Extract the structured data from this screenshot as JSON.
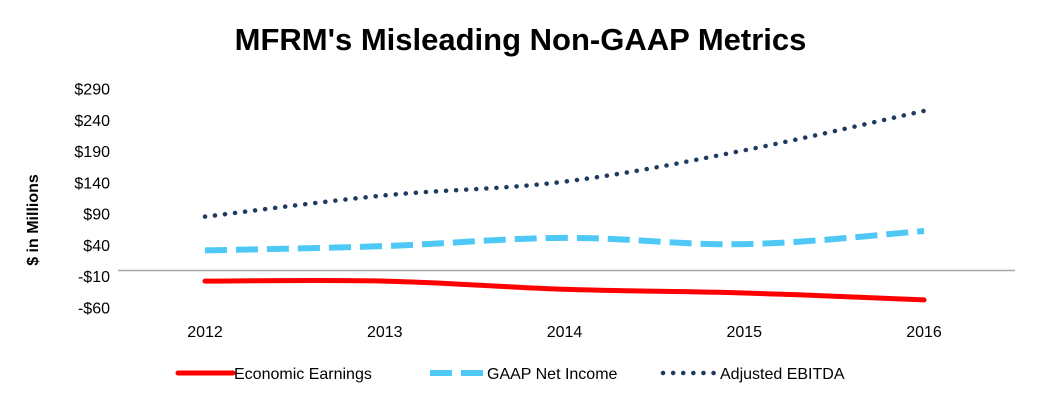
{
  "chart_data": {
    "type": "line",
    "title": "MFRM's Misleading Non-GAAP Metrics",
    "xlabel": "",
    "ylabel": "$ in Millions",
    "x": [
      "2012",
      "2013",
      "2014",
      "2015",
      "2016"
    ],
    "yticks": [
      -60,
      -10,
      40,
      90,
      140,
      190,
      240,
      290
    ],
    "ytick_labels": [
      "-$60",
      "-$10",
      "$40",
      "$90",
      "$140",
      "$190",
      "$240",
      "$290"
    ],
    "ylim": [
      -60,
      290
    ],
    "grid": false,
    "legend_position": "bottom",
    "series": [
      {
        "name": "Economic Earnings",
        "values": [
          -17,
          -17,
          -30,
          -36,
          -47
        ],
        "color": "#ff0000",
        "style": "solid"
      },
      {
        "name": "GAAP Net Income",
        "values": [
          32,
          39,
          52,
          42,
          63
        ],
        "color": "#4ec9f5",
        "style": "dashed"
      },
      {
        "name": "Adjusted EBITDA",
        "values": [
          86,
          120,
          142,
          192,
          255
        ],
        "color": "#1f3a5f",
        "style": "dotted"
      }
    ]
  }
}
